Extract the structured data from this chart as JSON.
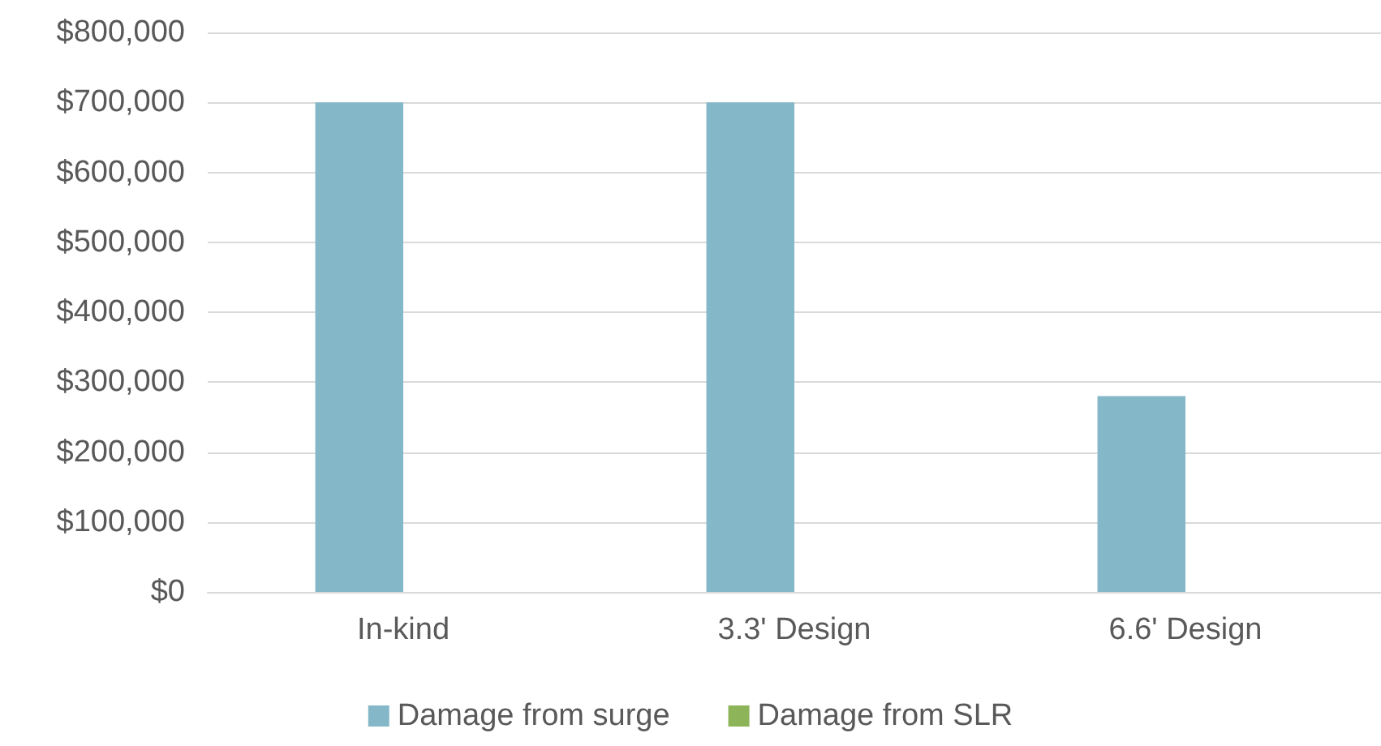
{
  "chart_data": {
    "type": "bar",
    "categories": [
      "In-kind",
      "3.3' Design",
      "6.6' Design"
    ],
    "series": [
      {
        "name": "Damage from surge",
        "color": "#84b8c8",
        "values": [
          700000,
          700000,
          280000
        ]
      },
      {
        "name": "Damage from SLR",
        "color": "#8db458",
        "values": [
          0,
          0,
          0
        ]
      }
    ],
    "ylim": [
      0,
      800000
    ],
    "yticks": [
      {
        "value": 0,
        "label": "$0"
      },
      {
        "value": 100000,
        "label": "$100,000"
      },
      {
        "value": 200000,
        "label": "$200,000"
      },
      {
        "value": 300000,
        "label": "$300,000"
      },
      {
        "value": 400000,
        "label": "$400,000"
      },
      {
        "value": 500000,
        "label": "$500,000"
      },
      {
        "value": 600000,
        "label": "$600,000"
      },
      {
        "value": 700000,
        "label": "$700,000"
      },
      {
        "value": 800000,
        "label": "$800,000"
      }
    ],
    "grid": "y",
    "legend": "bottom"
  }
}
